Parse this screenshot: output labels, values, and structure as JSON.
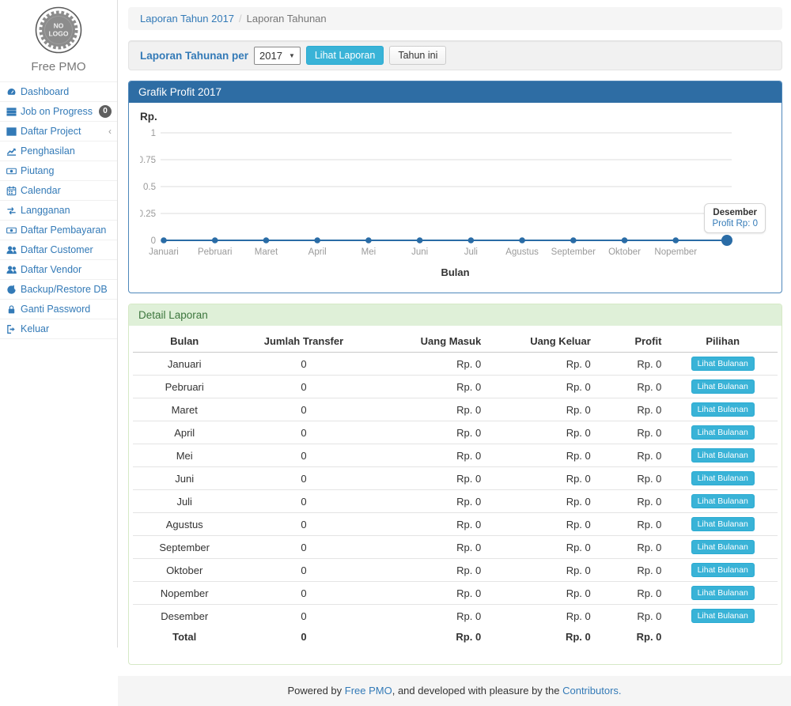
{
  "sidebar": {
    "logo_line1": "NO",
    "logo_line2": "LOGO",
    "brand": "Free PMO",
    "items": [
      {
        "label": "Dashboard",
        "icon": "dashboard-icon"
      },
      {
        "label": "Job on Progress",
        "icon": "tasks-icon",
        "badge": "0"
      },
      {
        "label": "Daftar Project",
        "icon": "table-icon",
        "chevron": "‹"
      },
      {
        "label": "Penghasilan",
        "icon": "line-chart-icon"
      },
      {
        "label": "Piutang",
        "icon": "money-icon"
      },
      {
        "label": "Calendar",
        "icon": "calendar-icon"
      },
      {
        "label": "Langganan",
        "icon": "retweet-icon"
      },
      {
        "label": "Daftar Pembayaran",
        "icon": "money-icon"
      },
      {
        "label": "Daftar Customer",
        "icon": "users-icon"
      },
      {
        "label": "Daftar Vendor",
        "icon": "users-icon"
      },
      {
        "label": "Backup/Restore DB",
        "icon": "refresh-icon"
      },
      {
        "label": "Ganti Password",
        "icon": "lock-icon"
      },
      {
        "label": "Keluar",
        "icon": "sign-out-icon"
      }
    ]
  },
  "breadcrumb": {
    "link": "Laporan Tahun 2017",
    "separator": "/",
    "current": "Laporan Tahunan"
  },
  "filter": {
    "label": "Laporan Tahunan per",
    "year_selected": "2017",
    "view_button": "Lihat Laporan",
    "current_year_button": "Tahun ini"
  },
  "chart_panel": {
    "title": "Grafik Profit 2017",
    "tooltip": {
      "title": "Desember",
      "value": "Profit Rp: 0"
    }
  },
  "chart_data": {
    "type": "line",
    "title": "Grafik Profit 2017",
    "categories": [
      "Januari",
      "Pebruari",
      "Maret",
      "April",
      "Mei",
      "Juni",
      "Juli",
      "Agustus",
      "September",
      "Oktober",
      "Nopember",
      "Desember"
    ],
    "values": [
      0,
      0,
      0,
      0,
      0,
      0,
      0,
      0,
      0,
      0,
      0,
      0
    ],
    "xlabel": "Bulan",
    "ylabel": "Rp.",
    "ylim": [
      0,
      1
    ],
    "yticks": [
      1,
      0.75,
      0.5,
      0.25,
      0
    ],
    "grid": true,
    "legend": false,
    "line_color": "#2a6ca6",
    "grid_color": "#dcdcdc",
    "tick_color": "#9a9a9a",
    "highlighted_point": "Desember",
    "last_x_tick_label_hidden": true
  },
  "table": {
    "title": "Detail Laporan",
    "columns": [
      "Bulan",
      "Jumlah Transfer",
      "Uang Masuk",
      "Uang Keluar",
      "Profit",
      "Pilihan"
    ],
    "action_label": "Lihat Bulanan",
    "rows": [
      {
        "bulan": "Januari",
        "jumlah_transfer": "0",
        "uang_masuk": "Rp. 0",
        "uang_keluar": "Rp. 0",
        "profit": "Rp. 0"
      },
      {
        "bulan": "Pebruari",
        "jumlah_transfer": "0",
        "uang_masuk": "Rp. 0",
        "uang_keluar": "Rp. 0",
        "profit": "Rp. 0"
      },
      {
        "bulan": "Maret",
        "jumlah_transfer": "0",
        "uang_masuk": "Rp. 0",
        "uang_keluar": "Rp. 0",
        "profit": "Rp. 0"
      },
      {
        "bulan": "April",
        "jumlah_transfer": "0",
        "uang_masuk": "Rp. 0",
        "uang_keluar": "Rp. 0",
        "profit": "Rp. 0"
      },
      {
        "bulan": "Mei",
        "jumlah_transfer": "0",
        "uang_masuk": "Rp. 0",
        "uang_keluar": "Rp. 0",
        "profit": "Rp. 0"
      },
      {
        "bulan": "Juni",
        "jumlah_transfer": "0",
        "uang_masuk": "Rp. 0",
        "uang_keluar": "Rp. 0",
        "profit": "Rp. 0"
      },
      {
        "bulan": "Juli",
        "jumlah_transfer": "0",
        "uang_masuk": "Rp. 0",
        "uang_keluar": "Rp. 0",
        "profit": "Rp. 0"
      },
      {
        "bulan": "Agustus",
        "jumlah_transfer": "0",
        "uang_masuk": "Rp. 0",
        "uang_keluar": "Rp. 0",
        "profit": "Rp. 0"
      },
      {
        "bulan": "September",
        "jumlah_transfer": "0",
        "uang_masuk": "Rp. 0",
        "uang_keluar": "Rp. 0",
        "profit": "Rp. 0"
      },
      {
        "bulan": "Oktober",
        "jumlah_transfer": "0",
        "uang_masuk": "Rp. 0",
        "uang_keluar": "Rp. 0",
        "profit": "Rp. 0"
      },
      {
        "bulan": "Nopember",
        "jumlah_transfer": "0",
        "uang_masuk": "Rp. 0",
        "uang_keluar": "Rp. 0",
        "profit": "Rp. 0"
      },
      {
        "bulan": "Desember",
        "jumlah_transfer": "0",
        "uang_masuk": "Rp. 0",
        "uang_keluar": "Rp. 0",
        "profit": "Rp. 0"
      }
    ],
    "total": {
      "bulan": "Total",
      "jumlah_transfer": "0",
      "uang_masuk": "Rp. 0",
      "uang_keluar": "Rp. 0",
      "profit": "Rp. 0"
    }
  },
  "footer": {
    "prefix": "Powered by ",
    "link1": "Free PMO",
    "middle": ", and developed with pleasure by the ",
    "link2": "Contributors."
  },
  "colors": {
    "primary_link": "#337ab7",
    "panel_primary_header": "#2e6da4",
    "info_button": "#39b3d7",
    "success_header_bg": "#dff0d8",
    "success_header_text": "#3c763d",
    "badge_bg": "#5f5f5f"
  }
}
